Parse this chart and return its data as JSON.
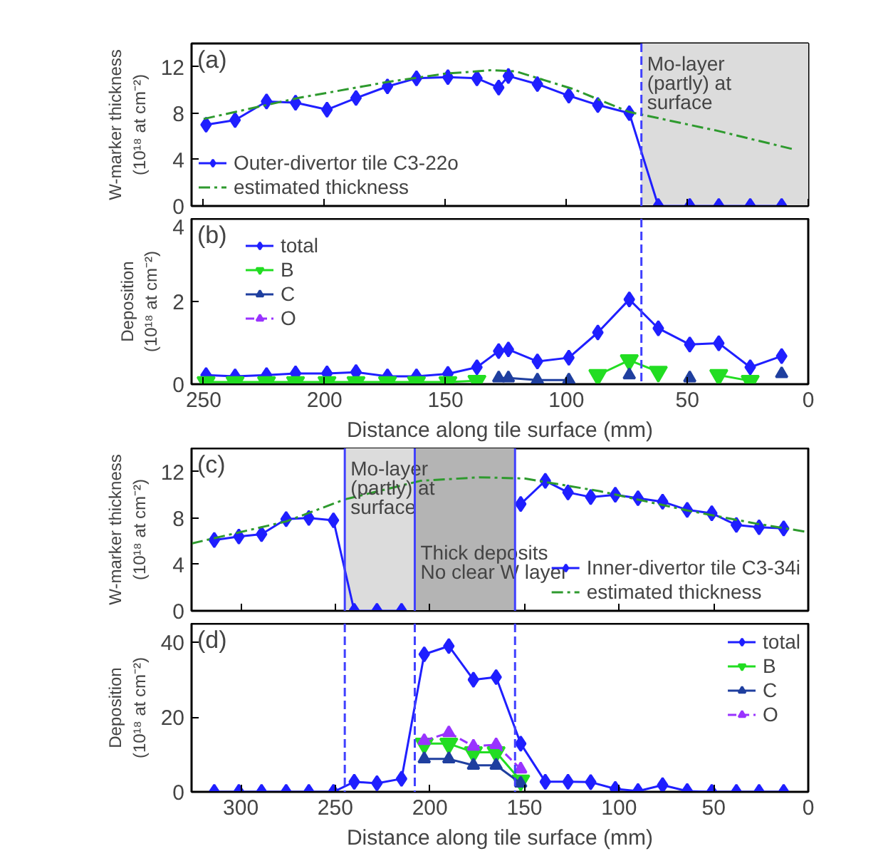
{
  "chart_data": [
    {
      "type": "line",
      "x": [
        249,
        237,
        224,
        212,
        199,
        187,
        174,
        162,
        149,
        137,
        128,
        124,
        112,
        99,
        87,
        74,
        62,
        49,
        37,
        24,
        11
      ],
      "series": [
        {
          "name": "Outer-divertor tile C3-22o",
          "color": "#1f1fff",
          "marker": "diamond",
          "line_style": "solid",
          "values": [
            7.0,
            7.4,
            9.0,
            8.9,
            8.3,
            9.3,
            10.3,
            11.0,
            11.1,
            11.0,
            10.2,
            11.2,
            10.5,
            9.5,
            8.7,
            8.0,
            0,
            0,
            0,
            0,
            0
          ]
        },
        {
          "name": "estimated thickness",
          "color": "#2e9a2e",
          "marker": "none",
          "line_style": "dashdot",
          "x": [
            250,
            211,
            173.5,
            150,
            131,
            121,
            97.6,
            74,
            38,
            6.4
          ],
          "values": [
            7.5,
            9.3,
            10.7,
            11.4,
            11.7,
            11.6,
            10.1,
            8.1,
            6.5,
            4.9
          ]
        }
      ],
      "xlim": [
        255,
        0
      ],
      "ylim": [
        0,
        14
      ],
      "xticks": [
        250,
        200,
        150,
        100,
        50,
        0
      ],
      "yticks": [
        0,
        4,
        8,
        12
      ],
      "tick_labels": "y",
      "ylabel": "W-marker thickness\n(10¹⁸ at cm⁻²)",
      "legend": "bottom left",
      "bands": [
        {
          "axis": "x",
          "from": 69,
          "to": 0,
          "label": "Mo-layer\n(partly) at\nsurface",
          "color": "#dcdcdc"
        }
      ],
      "ref_lines": [
        {
          "axis": "x",
          "value": 69,
          "color": "#4040ff",
          "line_style": "dashed"
        }
      ],
      "annotations": [
        "(a)"
      ]
    },
    {
      "type": "line",
      "x": [
        249,
        237,
        224,
        212,
        199,
        187,
        174,
        162,
        149,
        137,
        128,
        124,
        112,
        99,
        87,
        74,
        62,
        49,
        37,
        24,
        11
      ],
      "series": [
        {
          "name": "total",
          "color": "#1f1fff",
          "marker": "diamond",
          "line_style": "solid",
          "values": [
            0.22,
            0.19,
            0.22,
            0.26,
            0.26,
            0.29,
            0.19,
            0.19,
            0.25,
            0.41,
            0.8,
            0.84,
            0.55,
            0.64,
            1.25,
            2.05,
            1.35,
            0.96,
            0.99,
            0.41,
            0.68
          ]
        },
        {
          "name": "B",
          "color": "#22dd22",
          "marker": "triangle_down",
          "line_style": "solid",
          "values": [
            0.05,
            0.05,
            0.05,
            0.05,
            0.05,
            0.05,
            0.05,
            0.05,
            0.05,
            0.08,
            null,
            null,
            null,
            null,
            0.22,
            0.58,
            0.3,
            null,
            0.22,
            0.08,
            null
          ]
        },
        {
          "name": "C",
          "color": "#1f3f9f",
          "marker": "triangle",
          "line_style": "solid",
          "values": [
            null,
            null,
            null,
            null,
            null,
            null,
            null,
            null,
            null,
            null,
            0.15,
            0.15,
            0.1,
            0.1,
            null,
            0.22,
            null,
            0.15,
            null,
            null,
            0.25
          ]
        },
        {
          "name": "O",
          "color": "#9933ff",
          "marker": "triangle",
          "line_style": "dashed",
          "values": [
            null,
            null,
            null,
            null,
            null,
            null,
            null,
            null,
            null,
            null,
            null,
            null,
            null,
            null,
            null,
            null,
            null,
            null,
            null,
            null,
            null
          ]
        }
      ],
      "xlim": [
        255,
        0
      ],
      "ylim": [
        0,
        4
      ],
      "xticks": [
        250,
        200,
        150,
        100,
        50,
        0
      ],
      "yticks": [
        0,
        2,
        4
      ],
      "xlabel": "Distance along tile surface (mm)",
      "ylabel": "Deposition\n(10¹⁸ at cm⁻²)",
      "legend": "top left",
      "ref_lines": [
        {
          "axis": "x",
          "value": 69,
          "color": "#4040ff",
          "line_style": "dashed"
        }
      ],
      "annotations": [
        "(b)"
      ]
    },
    {
      "type": "line",
      "x": [
        314,
        301,
        289,
        276,
        264,
        251,
        240,
        228,
        215,
        203,
        190,
        177,
        165,
        152,
        139,
        127,
        115,
        102,
        90,
        77,
        64,
        51,
        38,
        26,
        13
      ],
      "series": [
        {
          "name": "Inner-divertor tile C3-34i",
          "color": "#1f1fff",
          "marker": "diamond",
          "line_style": "solid",
          "values": [
            6.1,
            6.4,
            6.6,
            7.9,
            8.0,
            7.8,
            0,
            0,
            0,
            null,
            null,
            null,
            null,
            9.2,
            11.2,
            10.2,
            9.8,
            10.0,
            9.7,
            9.4,
            8.7,
            8.4,
            7.4,
            7.2,
            7.1
          ]
        },
        {
          "name": "estimated thickness",
          "color": "#2e9a2e",
          "marker": "none",
          "line_style": "dashdot",
          "x": [
            326,
            276,
            245,
            205,
            174,
            150,
            110,
            62.5,
            27,
            0.7
          ],
          "values": [
            5.8,
            7.7,
            9.6,
            11.2,
            11.5,
            11.4,
            10.3,
            8.6,
            7.5,
            6.8
          ]
        }
      ],
      "xlim": [
        326,
        0
      ],
      "ylim": [
        0,
        14
      ],
      "xticks": [
        300,
        250,
        200,
        150,
        100,
        50,
        0
      ],
      "yticks": [
        0,
        4,
        8,
        12
      ],
      "tick_labels": "y",
      "ylabel": "W-marker thickness\n(10¹⁸ at cm⁻²)",
      "legend": "bottom right",
      "bands": [
        {
          "axis": "x",
          "from": 245,
          "to": 208,
          "label": "Mo-layer\n(partly) at\nsurface",
          "color": "#dcdcdc"
        },
        {
          "axis": "x",
          "from": 208,
          "to": 155,
          "label": "Thick deposits\nNo clear W layer",
          "color": "#b4b4b4"
        }
      ],
      "ref_lines": [
        {
          "axis": "x",
          "value": 245,
          "color": "#4040ff",
          "line_style": "solid"
        },
        {
          "axis": "x",
          "value": 208,
          "color": "#4040ff",
          "line_style": "solid"
        },
        {
          "axis": "x",
          "value": 155,
          "color": "#4040ff",
          "line_style": "solid"
        }
      ],
      "annotations": [
        "(c)"
      ]
    },
    {
      "type": "line",
      "x": [
        314,
        301,
        289,
        276,
        264,
        251,
        240,
        228,
        215,
        203,
        190,
        177,
        165,
        152,
        139,
        127,
        115,
        102,
        90,
        77,
        64,
        51,
        38,
        26,
        13
      ],
      "series": [
        {
          "name": "total",
          "color": "#1f1fff",
          "marker": "diamond",
          "line_style": "solid",
          "values": [
            0,
            0,
            0,
            0,
            0,
            0,
            2.7,
            2.3,
            3.5,
            36.8,
            39,
            30,
            30.7,
            12.9,
            2.7,
            2.7,
            2.6,
            0.8,
            0.2,
            1.8,
            0.2,
            0,
            0,
            0,
            0
          ]
        },
        {
          "name": "B",
          "color": "#22dd22",
          "marker": "triangle_down",
          "line_style": "solid",
          "values": [
            null,
            null,
            null,
            null,
            null,
            null,
            null,
            null,
            null,
            12.9,
            12.9,
            10.6,
            10.6,
            3,
            null,
            null,
            null,
            null,
            null,
            null,
            null,
            null,
            null,
            null,
            null
          ]
        },
        {
          "name": "C",
          "color": "#1f3f9f",
          "marker": "triangle",
          "line_style": "solid",
          "values": [
            null,
            null,
            null,
            null,
            null,
            null,
            null,
            null,
            null,
            8.8,
            8.8,
            7.1,
            7.1,
            2.3,
            null,
            null,
            null,
            null,
            null,
            null,
            null,
            null,
            null,
            null,
            null
          ]
        },
        {
          "name": "O",
          "color": "#9933ff",
          "marker": "triangle",
          "line_style": "dashed",
          "values": [
            null,
            null,
            null,
            null,
            null,
            null,
            null,
            null,
            null,
            13.7,
            15.8,
            12.2,
            12.6,
            6.1,
            null,
            null,
            null,
            null,
            null,
            null,
            null,
            null,
            null,
            null,
            null
          ]
        }
      ],
      "xlim": [
        326,
        0
      ],
      "ylim": [
        0,
        45
      ],
      "xticks": [
        300,
        250,
        200,
        150,
        100,
        50,
        0
      ],
      "yticks": [
        0,
        20,
        40
      ],
      "xlabel": "Distance along tile surface (mm)",
      "ylabel": "Deposition\n(10¹⁸ at cm⁻²)",
      "legend": "top right",
      "ref_lines": [
        {
          "axis": "x",
          "value": 245,
          "color": "#4040ff",
          "line_style": "dashed"
        },
        {
          "axis": "x",
          "value": 208,
          "color": "#4040ff",
          "line_style": "dashed"
        },
        {
          "axis": "x",
          "value": 155,
          "color": "#4040ff",
          "line_style": "dashed"
        }
      ],
      "annotations": [
        "(d)"
      ]
    }
  ]
}
